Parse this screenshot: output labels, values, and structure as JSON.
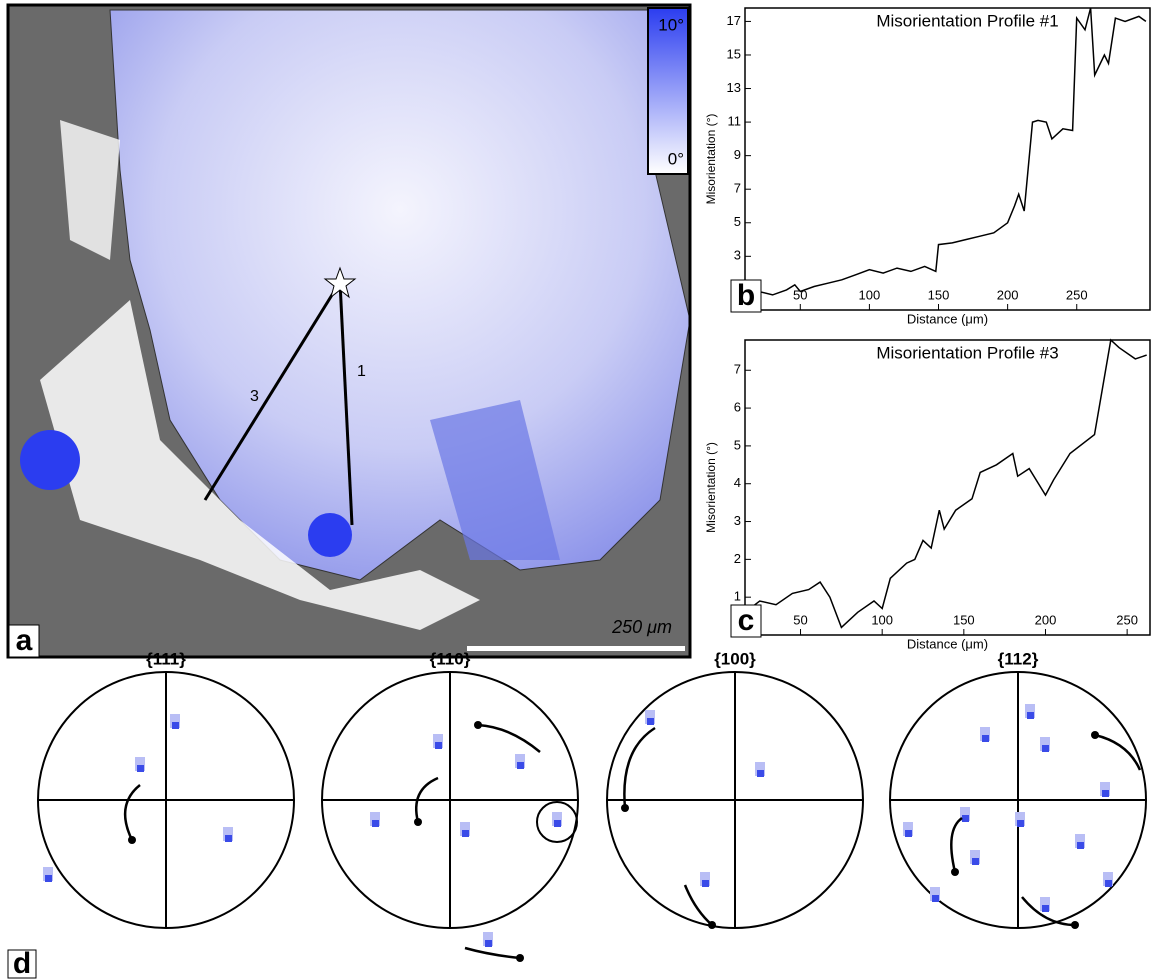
{
  "chart_data": [
    {
      "type": "line",
      "panel_label": "b",
      "title": "Misorientation Profile #1",
      "x_label": "Distance (μm)",
      "y_label": "Misorientation (°)",
      "color": "#000000",
      "x": [
        10,
        20,
        30,
        40,
        46,
        50,
        60,
        70,
        80,
        90,
        100,
        110,
        120,
        130,
        140,
        148,
        150,
        160,
        170,
        180,
        190,
        200,
        205,
        208,
        212,
        218,
        222,
        228,
        232,
        240,
        247,
        250,
        256,
        260,
        263,
        270,
        273,
        278,
        285,
        295,
        300
      ],
      "values": [
        0.5,
        0.9,
        0.7,
        1.0,
        1.3,
        0.9,
        1.2,
        1.4,
        1.6,
        1.9,
        2.2,
        2.0,
        2.3,
        2.1,
        2.4,
        2.1,
        3.7,
        3.8,
        4.0,
        4.2,
        4.4,
        5.0,
        6.0,
        6.7,
        5.7,
        11.0,
        11.1,
        11.0,
        10.0,
        10.6,
        10.5,
        17.2,
        16.5,
        17.8,
        13.8,
        15.0,
        14.5,
        17.2,
        17.0,
        17.3,
        17.0
      ],
      "xlim": [
        10,
        303
      ],
      "ylim": [
        -0.2,
        17.8
      ],
      "xticks": [
        50,
        100,
        150,
        200,
        250
      ],
      "yticks": [
        3,
        5,
        7,
        9,
        11,
        13,
        15,
        17
      ]
    },
    {
      "type": "line",
      "panel_label": "c",
      "title": "Misorientation Profile #3",
      "x_label": "Distance (μm)",
      "y_label": "Misorientation (°)",
      "color": "#000000",
      "x": [
        16,
        25,
        35,
        45,
        55,
        62,
        68,
        75,
        85,
        95,
        100,
        105,
        115,
        120,
        125,
        130,
        135,
        138,
        145,
        155,
        160,
        170,
        180,
        183,
        190,
        200,
        205,
        215,
        230,
        240,
        245,
        255,
        262
      ],
      "values": [
        0.6,
        0.9,
        0.8,
        1.1,
        1.2,
        1.4,
        1.0,
        0.2,
        0.6,
        0.9,
        0.7,
        1.5,
        1.9,
        2.0,
        2.5,
        2.3,
        3.3,
        2.8,
        3.3,
        3.6,
        4.3,
        4.5,
        4.8,
        4.2,
        4.4,
        3.7,
        4.1,
        4.8,
        5.3,
        7.8,
        7.6,
        7.3,
        7.4
      ],
      "xlim": [
        16,
        264
      ],
      "ylim": [
        0,
        7.8
      ],
      "xticks": [
        50,
        100,
        150,
        200,
        250
      ],
      "yticks": [
        1,
        2,
        3,
        4,
        5,
        6,
        7
      ]
    }
  ],
  "map": {
    "panel_label": "a",
    "scale_max": "10°",
    "scale_min": "0°",
    "scale_bar": "250 μm",
    "profile_labels": [
      "1",
      "3"
    ]
  },
  "pole_figures": {
    "panel_label": "d",
    "titles": [
      "{111}",
      "{110}",
      "{100}",
      "{112}"
    ]
  }
}
